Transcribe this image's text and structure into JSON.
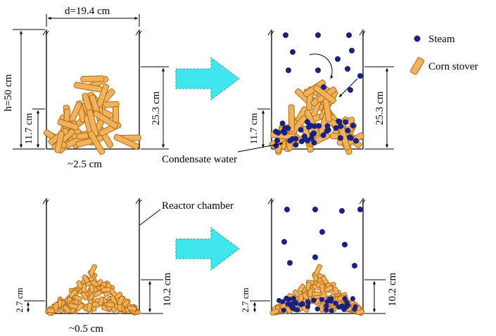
{
  "labels": {
    "diameter": "d=19.4 cm",
    "height": "h=50 cm",
    "top_fill_height": "11.7 cm",
    "top_gap": "25.3 cm",
    "top_particle_size": "~2.5 cm",
    "condensate": "Condensate water",
    "reactor_chamber": "Reactor chamber",
    "bottom_fill_height": "2.7 cm",
    "bottom_gap": "10.2 cm",
    "bottom_particle_size": "~0.5 cm"
  },
  "legend": {
    "steam": "Steam",
    "corn_stover": "Corn stover"
  },
  "colors": {
    "stover_fill": "#f2b15c",
    "stover_stroke": "#b06a12",
    "steam": "#1a2280",
    "arrow_fill": "#3fe6ee",
    "line": "#000000"
  }
}
